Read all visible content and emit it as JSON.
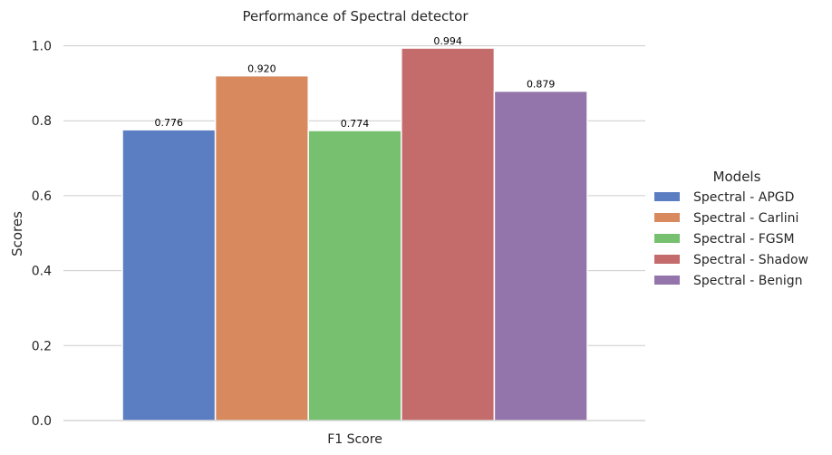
{
  "chart_data": {
    "type": "bar",
    "title": "Performance of Spectral detector",
    "xlabel": "",
    "ylabel": "Scores",
    "categories": [
      "F1 Score"
    ],
    "ylim": [
      0,
      1.04
    ],
    "yticks": [
      "0.0",
      "0.2",
      "0.4",
      "0.6",
      "0.8",
      "1.0"
    ],
    "grid": true,
    "legend": {
      "title": "Models",
      "placement": "right"
    },
    "series": [
      {
        "name": "Spectral - APGD",
        "values": [
          0.776
        ],
        "label": "0.776",
        "color": "#5b7ec2"
      },
      {
        "name": "Spectral - Carlini",
        "values": [
          0.92
        ],
        "label": "0.920",
        "color": "#d88a5e"
      },
      {
        "name": "Spectral - FGSM",
        "values": [
          0.774
        ],
        "label": "0.774",
        "color": "#76c06f"
      },
      {
        "name": "Spectral - Shadow",
        "values": [
          0.994
        ],
        "label": "0.994",
        "color": "#c46c6b"
      },
      {
        "name": "Spectral - Benign",
        "values": [
          0.879
        ],
        "label": "0.879",
        "color": "#9375ab"
      }
    ]
  }
}
